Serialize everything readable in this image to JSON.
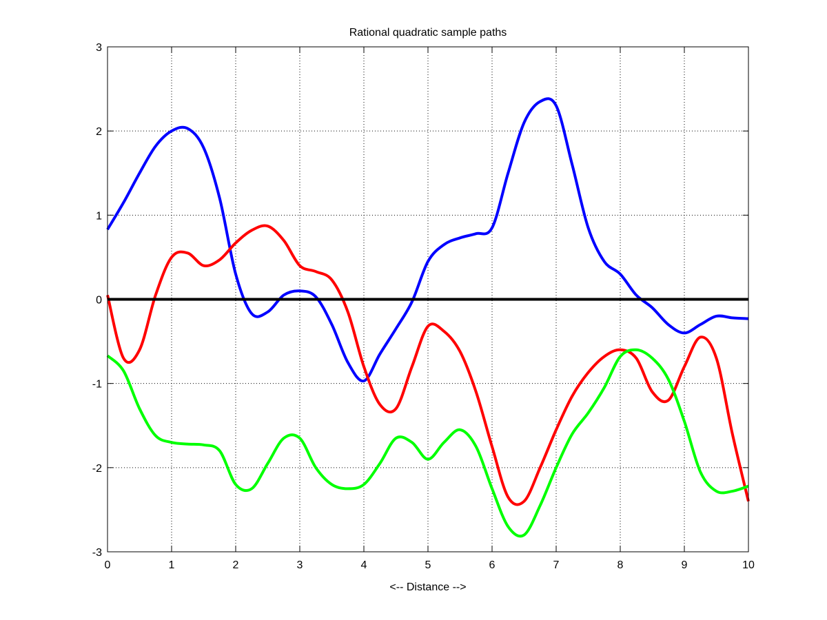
{
  "chart_data": {
    "type": "line",
    "title": "Rational quadratic sample paths",
    "xlabel": "<-- Distance -->",
    "ylabel": "",
    "xlim": [
      0,
      10
    ],
    "ylim": [
      -3,
      3
    ],
    "grid": true,
    "x_ticks": [
      "0",
      "1",
      "2",
      "3",
      "4",
      "5",
      "6",
      "7",
      "8",
      "9",
      "10"
    ],
    "y_ticks": [
      "-3",
      "-2",
      "-1",
      "0",
      "1",
      "2",
      "3"
    ],
    "x": [
      0,
      0.25,
      0.5,
      0.75,
      1,
      1.25,
      1.5,
      1.75,
      2,
      2.25,
      2.5,
      2.75,
      3,
      3.25,
      3.5,
      3.75,
      4,
      4.25,
      4.5,
      4.75,
      5,
      5.25,
      5.5,
      5.75,
      6,
      6.25,
      6.5,
      6.75,
      7,
      7.25,
      7.5,
      7.75,
      8,
      8.25,
      8.5,
      8.75,
      9,
      9.25,
      9.5,
      9.75,
      10
    ],
    "series": [
      {
        "color": "#0000ff",
        "values": [
          0.83,
          1.15,
          1.5,
          1.82,
          2.0,
          2.03,
          1.8,
          1.2,
          0.3,
          -0.17,
          -0.15,
          0.05,
          0.1,
          0.03,
          -0.3,
          -0.75,
          -0.97,
          -0.65,
          -0.35,
          -0.03,
          0.45,
          0.65,
          0.73,
          0.78,
          0.85,
          1.5,
          2.1,
          2.35,
          2.3,
          1.6,
          0.85,
          0.45,
          0.3,
          0.05,
          -0.1,
          -0.3,
          -0.4,
          -0.3,
          -0.2,
          -0.22,
          -0.23
        ]
      },
      {
        "color": "#ff0000",
        "values": [
          0.05,
          -0.7,
          -0.6,
          0.05,
          0.5,
          0.55,
          0.4,
          0.47,
          0.67,
          0.82,
          0.87,
          0.7,
          0.4,
          0.33,
          0.23,
          -0.15,
          -0.8,
          -1.25,
          -1.3,
          -0.8,
          -0.32,
          -0.38,
          -0.62,
          -1.1,
          -1.75,
          -2.35,
          -2.4,
          -2.0,
          -1.55,
          -1.15,
          -0.87,
          -0.68,
          -0.6,
          -0.7,
          -1.1,
          -1.2,
          -0.8,
          -0.45,
          -0.7,
          -1.6,
          -2.4
        ]
      },
      {
        "color": "#00ff00",
        "values": [
          -0.67,
          -0.85,
          -1.3,
          -1.62,
          -1.7,
          -1.72,
          -1.73,
          -1.8,
          -2.2,
          -2.25,
          -1.95,
          -1.65,
          -1.65,
          -2.0,
          -2.2,
          -2.25,
          -2.2,
          -1.95,
          -1.65,
          -1.7,
          -1.9,
          -1.7,
          -1.55,
          -1.75,
          -2.25,
          -2.7,
          -2.8,
          -2.45,
          -2.0,
          -1.6,
          -1.35,
          -1.05,
          -0.68,
          -0.6,
          -0.7,
          -0.95,
          -1.45,
          -2.05,
          -2.28,
          -2.28,
          -2.22
        ]
      },
      {
        "color": "#000000",
        "values": [
          0,
          0,
          0,
          0,
          0,
          0,
          0,
          0,
          0,
          0,
          0,
          0,
          0,
          0,
          0,
          0,
          0,
          0,
          0,
          0,
          0,
          0,
          0,
          0,
          0,
          0,
          0,
          0,
          0,
          0,
          0,
          0,
          0,
          0,
          0,
          0,
          0,
          0,
          0,
          0,
          0
        ]
      }
    ]
  }
}
